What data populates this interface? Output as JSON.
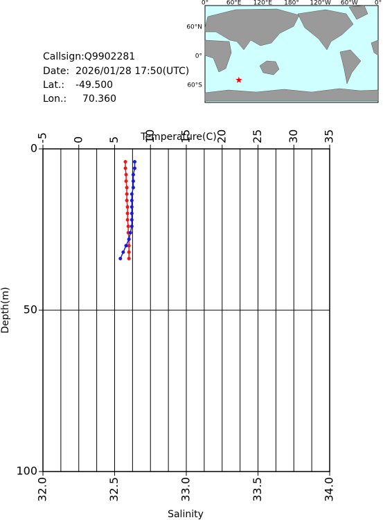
{
  "info": {
    "callsign": "Callsign:Q9902281",
    "date": "Date:  2026/01/28 17:50(UTC)",
    "lat_label": "Lat.:",
    "lat": {
      "value": -49.5,
      "label": "-49.500"
    },
    "lon_label": "Lon.:",
    "lon": {
      "value": 70.36,
      "label": "70.360"
    }
  },
  "map": {
    "lon_labels": [
      "0°",
      "60°E",
      "120°E",
      "180°",
      "120°W",
      "60°W",
      "0°"
    ],
    "lat_labels": [
      "60°N",
      "0°",
      "60°S"
    ]
  },
  "chart_data": {
    "type": "line",
    "ylabel": "Depth(m)",
    "xlabel": "Salinity",
    "x2label": "Temperature(C)",
    "ylim": [
      0,
      100
    ],
    "yticks": [
      0,
      50,
      100
    ],
    "xlim": [
      32,
      34
    ],
    "xticks": [
      {
        "value": 32,
        "label": "32.0"
      },
      {
        "value": 32.5,
        "label": "32.5"
      },
      {
        "value": 33,
        "label": "33.0"
      },
      {
        "value": 33.5,
        "label": "33.5"
      },
      {
        "value": 34,
        "label": "34.0"
      }
    ],
    "x2lim": [
      -5,
      35
    ],
    "x2ticks": [
      -5,
      0,
      5,
      10,
      15,
      20,
      25,
      30,
      35
    ],
    "grid": true,
    "depth": [
      4,
      6,
      8,
      10,
      12,
      14,
      16,
      18,
      20,
      22,
      24,
      26,
      28,
      30,
      32,
      34
    ],
    "series": [
      {
        "color": "#e41a1c",
        "axis": "x2",
        "values": [
          6.5,
          6.5,
          6.6,
          6.6,
          6.7,
          6.7,
          6.7,
          6.8,
          6.8,
          6.8,
          6.9,
          6.9,
          7.0,
          7.0,
          7.0,
          7.0
        ]
      },
      {
        "color": "#1a1ad6",
        "axis": "x",
        "values": [
          32.64,
          32.64,
          32.63,
          32.63,
          32.63,
          32.62,
          32.62,
          32.62,
          32.62,
          32.62,
          32.62,
          32.61,
          32.6,
          32.58,
          32.56,
          32.54
        ]
      }
    ]
  }
}
